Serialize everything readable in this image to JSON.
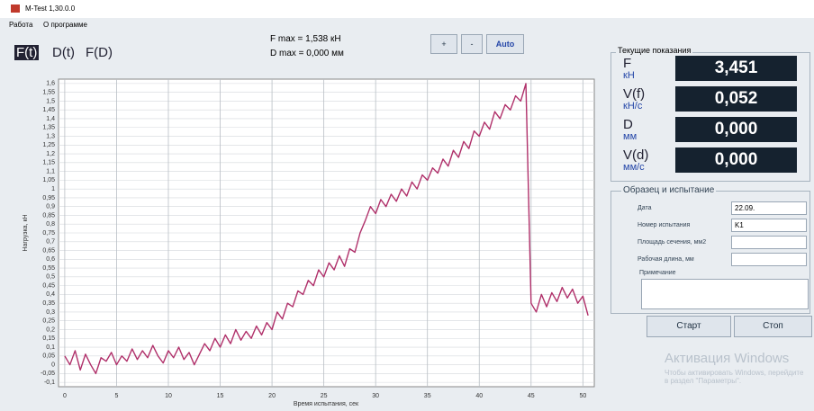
{
  "window": {
    "title": "M-Test 1,30.0.0",
    "menu": [
      "Работа",
      "О программе"
    ]
  },
  "tabs": [
    "F(t)",
    "D(t)",
    "F(D)"
  ],
  "summary": [
    "F max = 1,538 кН",
    "D max = 0,000 мм"
  ],
  "buttons": [
    "+",
    "-",
    "Auto"
  ],
  "chart_data": {
    "type": "line",
    "xlabel": "Время испытания, сек",
    "ylabel": "Нагрузка, кН",
    "x": [
      0,
      0.5,
      1,
      1.5,
      2,
      2.5,
      3,
      3.5,
      4,
      4.5,
      5,
      5.5,
      6,
      6.5,
      7,
      7.5,
      8,
      8.5,
      9,
      9.5,
      10,
      10.5,
      11,
      11.5,
      12,
      12.5,
      13,
      13.5,
      14,
      14.5,
      15,
      15.5,
      16,
      16.5,
      17,
      17.5,
      18,
      18.5,
      19,
      19.5,
      20,
      20.5,
      21,
      21.5,
      22,
      22.5,
      23,
      23.5,
      24,
      24.5,
      25,
      25.5,
      26,
      26.5,
      27,
      27.5,
      28,
      28.5,
      29,
      29.5,
      30,
      30.5,
      31,
      31.5,
      32,
      32.5,
      33,
      33.5,
      34,
      34.5,
      35,
      35.5,
      36,
      36.5,
      37,
      37.5,
      38,
      38.5,
      39,
      39.5,
      40,
      40.5,
      41,
      41.5,
      42,
      42.5,
      43,
      43.5,
      44,
      44.5,
      45,
      45.5,
      46,
      46.5,
      47,
      47.5,
      48,
      48.5,
      49,
      49.5,
      50,
      50.5
    ],
    "series": [
      {
        "color": "#b0306a",
        "values": [
          0.05,
          0.0,
          0.08,
          -0.03,
          0.06,
          0.0,
          -0.05,
          0.04,
          0.02,
          0.07,
          0.0,
          0.05,
          0.02,
          0.09,
          0.03,
          0.08,
          0.04,
          0.11,
          0.05,
          0.01,
          0.08,
          0.04,
          0.1,
          0.03,
          0.07,
          0.0,
          0.06,
          0.12,
          0.08,
          0.15,
          0.1,
          0.17,
          0.12,
          0.2,
          0.14,
          0.19,
          0.15,
          0.22,
          0.17,
          0.24,
          0.2,
          0.3,
          0.26,
          0.35,
          0.33,
          0.42,
          0.4,
          0.48,
          0.45,
          0.54,
          0.5,
          0.58,
          0.54,
          0.62,
          0.56,
          0.66,
          0.64,
          0.75,
          0.82,
          0.9,
          0.86,
          0.94,
          0.9,
          0.97,
          0.93,
          1.0,
          0.96,
          1.04,
          1.0,
          1.08,
          1.05,
          1.12,
          1.09,
          1.17,
          1.13,
          1.22,
          1.18,
          1.27,
          1.23,
          1.33,
          1.3,
          1.38,
          1.34,
          1.44,
          1.4,
          1.48,
          1.45,
          1.53,
          1.5,
          1.6,
          0.35,
          0.3,
          0.4,
          0.33,
          0.41,
          0.36,
          0.44,
          0.38,
          0.43,
          0.35,
          0.39,
          0.28
        ]
      }
    ],
    "xlim": [
      -0.6,
      51.1
    ],
    "ylim": [
      -0.125,
      1.625
    ],
    "xticks": [
      0,
      5,
      10,
      15,
      20,
      25,
      30,
      35,
      40,
      45,
      50
    ],
    "yticks": [
      {
        "value": -0.1,
        "label": "-0,1"
      },
      {
        "value": -0.05,
        "label": "-0,05"
      },
      0,
      {
        "value": 0.05,
        "label": "0,05"
      },
      {
        "value": 0.1,
        "label": "0,1"
      },
      {
        "value": 0.15,
        "label": "0,15"
      },
      {
        "value": 0.2,
        "label": "0,2"
      },
      {
        "value": 0.25,
        "label": "0,25"
      },
      {
        "value": 0.3,
        "label": "0,3"
      },
      {
        "value": 0.35,
        "label": "0,35"
      },
      {
        "value": 0.4,
        "label": "0,4"
      },
      {
        "value": 0.45,
        "label": "0,45"
      },
      {
        "value": 0.5,
        "label": "0,5"
      },
      {
        "value": 0.55,
        "label": "0,55"
      },
      {
        "value": 0.6,
        "label": "0,6"
      },
      {
        "value": 0.65,
        "label": "0,65"
      },
      {
        "value": 0.7,
        "label": "0,7"
      },
      {
        "value": 0.75,
        "label": "0,75"
      },
      {
        "value": 0.8,
        "label": "0,8"
      },
      {
        "value": 0.85,
        "label": "0,85"
      },
      {
        "value": 0.9,
        "label": "0,9"
      },
      {
        "value": 0.95,
        "label": "0,95"
      },
      1,
      {
        "value": 1.05,
        "label": "1,05"
      },
      {
        "value": 1.1,
        "label": "1,1"
      },
      {
        "value": 1.15,
        "label": "1,15"
      },
      {
        "value": 1.2,
        "label": "1,2"
      },
      {
        "value": 1.25,
        "label": "1,25"
      },
      {
        "value": 1.3,
        "label": "1,3"
      },
      {
        "value": 1.35,
        "label": "1,35"
      },
      {
        "value": 1.4,
        "label": "1,4"
      },
      {
        "value": 1.45,
        "label": "1,45"
      },
      {
        "value": 1.5,
        "label": "1,5"
      },
      {
        "value": 1.55,
        "label": "1,55"
      },
      {
        "value": 1.6,
        "label": "1,6"
      }
    ],
    "grid": true
  },
  "readings": {
    "title": "Текущие показания",
    "items": [
      {
        "label": "F",
        "unit": "кН",
        "value": "3,451"
      },
      {
        "label": "V(f)",
        "unit": "кН/с",
        "value": "0,052"
      },
      {
        "label": "D",
        "unit": "мм",
        "value": "0,000"
      },
      {
        "label": "V(d)",
        "unit": "мм/с",
        "value": "0,000"
      }
    ]
  },
  "sample": {
    "title": "Образец и испытание",
    "fields": [
      {
        "label": "Дата",
        "value": "22.09."
      },
      {
        "label": "Номер испытания",
        "value": "K1"
      },
      {
        "label": "Площадь сечения, мм2"
      },
      {
        "label": "Рабочая длина, мм"
      }
    ],
    "note_label": "Примечание"
  },
  "actions": [
    "Старт",
    "Стоп"
  ],
  "watermark": [
    "Активация Windows",
    "Чтобы активировать Windows, перейдите в раздел \"Параметры\"."
  ]
}
